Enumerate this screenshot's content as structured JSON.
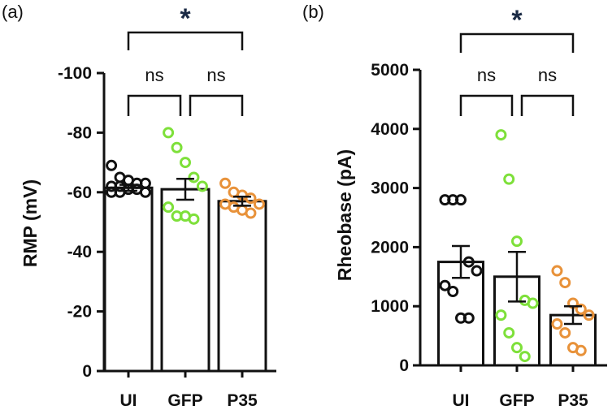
{
  "chart_data": [
    {
      "panel_label": "(a)",
      "type": "bar",
      "ylabel": "RMP (mV)",
      "categories": [
        "UI",
        "GFP",
        "P35"
      ],
      "ylim": [
        0,
        -100
      ],
      "yticks": [
        {
          "value": 0,
          "label": "0"
        },
        {
          "value": -20,
          "label": "-20"
        },
        {
          "value": -40,
          "label": "-40"
        },
        {
          "value": -60,
          "label": "-60"
        },
        {
          "value": -80,
          "label": "-80"
        },
        {
          "value": -100,
          "label": "-100"
        }
      ],
      "means": [
        -61.5,
        -61,
        -57
      ],
      "errors": [
        1,
        3.5,
        1.5
      ],
      "points": [
        [
          -69,
          -65,
          -64,
          -63,
          -63,
          -62,
          -62,
          -61,
          -61,
          -60,
          -60,
          -60
        ],
        [
          -80,
          -75,
          -70,
          -65,
          -62,
          -55,
          -52,
          -52,
          -51
        ],
        [
          -63,
          -60,
          -59,
          -58,
          -56,
          -56,
          -55,
          -54,
          -53
        ]
      ],
      "colors": [
        "#111111",
        "#7ee03a",
        "#e8923a"
      ],
      "comparisons": [
        {
          "from": 0,
          "to": 1,
          "label": "ns"
        },
        {
          "from": 1,
          "to": 2,
          "label": "ns"
        },
        {
          "from": 0,
          "to": 2,
          "label": "*"
        }
      ]
    },
    {
      "panel_label": "(b)",
      "type": "bar",
      "ylabel": "Rheobase (pA)",
      "categories": [
        "UI",
        "GFP",
        "P35"
      ],
      "ylim": [
        0,
        5000
      ],
      "yticks": [
        {
          "value": 0,
          "label": "0"
        },
        {
          "value": 1000,
          "label": "1000"
        },
        {
          "value": 2000,
          "label": "2000"
        },
        {
          "value": 3000,
          "label": "3000"
        },
        {
          "value": 4000,
          "label": "4000"
        },
        {
          "value": 5000,
          "label": "5000"
        }
      ],
      "means": [
        1750,
        1500,
        850
      ],
      "errors": [
        270,
        420,
        150
      ],
      "points": [
        [
          2800,
          2800,
          2800,
          1750,
          1600,
          1350,
          1250,
          800,
          800
        ],
        [
          3900,
          3150,
          2100,
          1100,
          1050,
          850,
          550,
          300,
          150
        ],
        [
          1600,
          1400,
          1050,
          950,
          850,
          700,
          550,
          300,
          250
        ]
      ],
      "colors": [
        "#111111",
        "#7ee03a",
        "#e8923a"
      ],
      "comparisons": [
        {
          "from": 0,
          "to": 1,
          "label": "ns"
        },
        {
          "from": 1,
          "to": 2,
          "label": "ns"
        },
        {
          "from": 0,
          "to": 2,
          "label": "*"
        }
      ]
    }
  ]
}
